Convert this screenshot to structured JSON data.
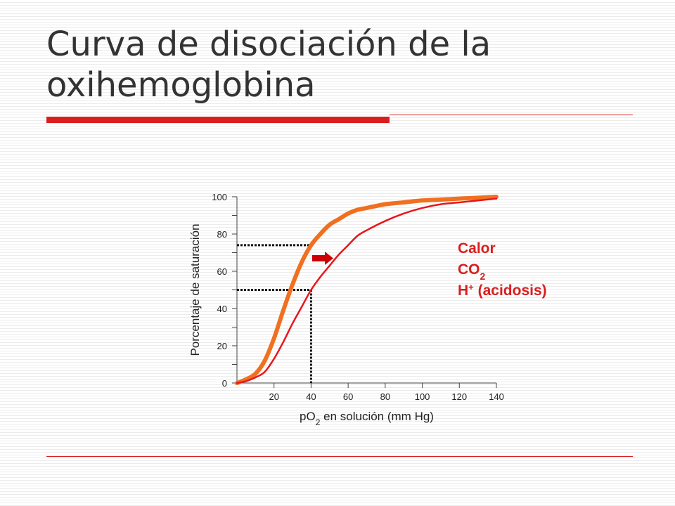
{
  "title": "Curva de disociación de la oxihemoglobina",
  "colors": {
    "accent": "#d91e1e",
    "curve_shifted": "#f07020",
    "curve_normal": "#e8161c",
    "arrow": "#cc0000"
  },
  "chart_data": {
    "type": "line",
    "xlabel": {
      "main": "pO",
      "sub": "2",
      "rest": " en solución (mm Hg)"
    },
    "ylabel": "Porcentaje de saturación",
    "x_ticks": [
      "20",
      "40",
      "60",
      "80",
      "100",
      "120",
      "140"
    ],
    "y_ticks": [
      "0",
      "20",
      "40",
      "60",
      "80",
      "100"
    ],
    "xlim": [
      0,
      140
    ],
    "ylim": [
      0,
      100
    ],
    "grid": false,
    "series": [
      {
        "x": [
          0,
          5,
          10,
          15,
          20,
          25,
          30,
          35,
          40,
          45,
          50,
          55,
          60,
          65,
          70,
          80,
          90,
          100,
          110,
          120,
          130,
          140
        ],
        "y": [
          0,
          2,
          5,
          12,
          24,
          39,
          53,
          65,
          74,
          80,
          85,
          88,
          91,
          93,
          94,
          96,
          97,
          98,
          98.5,
          99,
          99.5,
          100
        ],
        "color": "#f07020",
        "width": 6
      },
      {
        "x": [
          0,
          5,
          10,
          15,
          20,
          25,
          30,
          35,
          40,
          45,
          50,
          55,
          60,
          65,
          70,
          80,
          90,
          100,
          110,
          120,
          130,
          140
        ],
        "y": [
          0,
          1,
          3,
          6,
          13,
          22,
          32,
          41,
          50,
          57,
          63,
          69,
          74,
          79,
          82,
          87,
          91,
          94,
          96,
          97,
          98,
          99
        ],
        "color": "#e8161c",
        "width": 2.5
      }
    ],
    "reference_lines": [
      {
        "x": 40,
        "y": 50
      },
      {
        "x": 40,
        "y": 74
      }
    ],
    "annotations": {
      "factors": [
        {
          "text": "Calor"
        },
        {
          "text": "CO",
          "sub": "2"
        },
        {
          "text": "H",
          "sup": "+",
          "rest": " (acidosis)"
        }
      ]
    }
  }
}
